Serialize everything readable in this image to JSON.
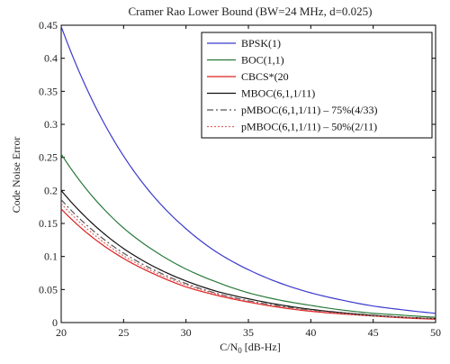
{
  "chart_data": {
    "type": "line",
    "title": "Cramer Rao Lower Bound (BW=24 MHz, d=0.025)",
    "xlabel": "C/N",
    "xlabel_sub": "0",
    "xlabel_unit": " [dB-Hz]",
    "ylabel": "Code Noise Error",
    "xlim": [
      20,
      50
    ],
    "ylim": [
      0,
      0.45
    ],
    "xticks": [
      20,
      25,
      30,
      35,
      40,
      45,
      50
    ],
    "yticks": [
      0,
      0.05,
      0.1,
      0.15,
      0.2,
      0.25,
      0.3,
      0.35,
      0.4,
      0.45
    ],
    "xtick_labels": [
      "20",
      "25",
      "30",
      "35",
      "40",
      "45",
      "50"
    ],
    "ytick_labels": [
      "0",
      "0.05",
      "0.1",
      "0.15",
      "0.2",
      "0.25",
      "0.3",
      "0.35",
      "0.4",
      "0.45"
    ],
    "grid": false,
    "legend_position": "top-right",
    "x": [
      20,
      22.5,
      25,
      27.5,
      30,
      32.5,
      35,
      37.5,
      40,
      42.5,
      45,
      47.5,
      50
    ],
    "series": [
      {
        "name": "BPSK(1)",
        "color": "#3a3acc",
        "dash": "solid",
        "values": [
          0.448,
          0.336,
          0.252,
          0.189,
          0.142,
          0.106,
          0.08,
          0.06,
          0.045,
          0.034,
          0.025,
          0.019,
          0.014
        ]
      },
      {
        "name": "BOC(1,1)",
        "color": "#2a7a3a",
        "dash": "solid",
        "values": [
          0.255,
          0.191,
          0.143,
          0.108,
          0.081,
          0.061,
          0.045,
          0.034,
          0.026,
          0.019,
          0.014,
          0.011,
          0.008
        ]
      },
      {
        "name": "CBCS*(20",
        "color": "#dd2222",
        "dash": "solid",
        "values": [
          0.172,
          0.129,
          0.097,
          0.073,
          0.054,
          0.041,
          0.031,
          0.023,
          0.017,
          0.013,
          0.01,
          0.007,
          0.005
        ]
      },
      {
        "name": "MBOC(6,1,1/11)",
        "color": "#111111",
        "dash": "solid",
        "values": [
          0.2,
          0.15,
          0.112,
          0.084,
          0.063,
          0.047,
          0.036,
          0.027,
          0.02,
          0.015,
          0.011,
          0.008,
          0.006
        ]
      },
      {
        "name": "pMBOC(6,1,1/11) – 75%(4/33)",
        "color": "#555555",
        "dash": "dashdot",
        "values": [
          0.186,
          0.14,
          0.105,
          0.079,
          0.059,
          0.044,
          0.033,
          0.025,
          0.019,
          0.014,
          0.01,
          0.008,
          0.006
        ]
      },
      {
        "name": "pMBOC(6,1,1/11) – 50%(2/11)",
        "color": "#dd6666",
        "dash": "dotted",
        "values": [
          0.18,
          0.135,
          0.101,
          0.076,
          0.057,
          0.043,
          0.032,
          0.024,
          0.018,
          0.014,
          0.01,
          0.008,
          0.006
        ]
      }
    ]
  }
}
